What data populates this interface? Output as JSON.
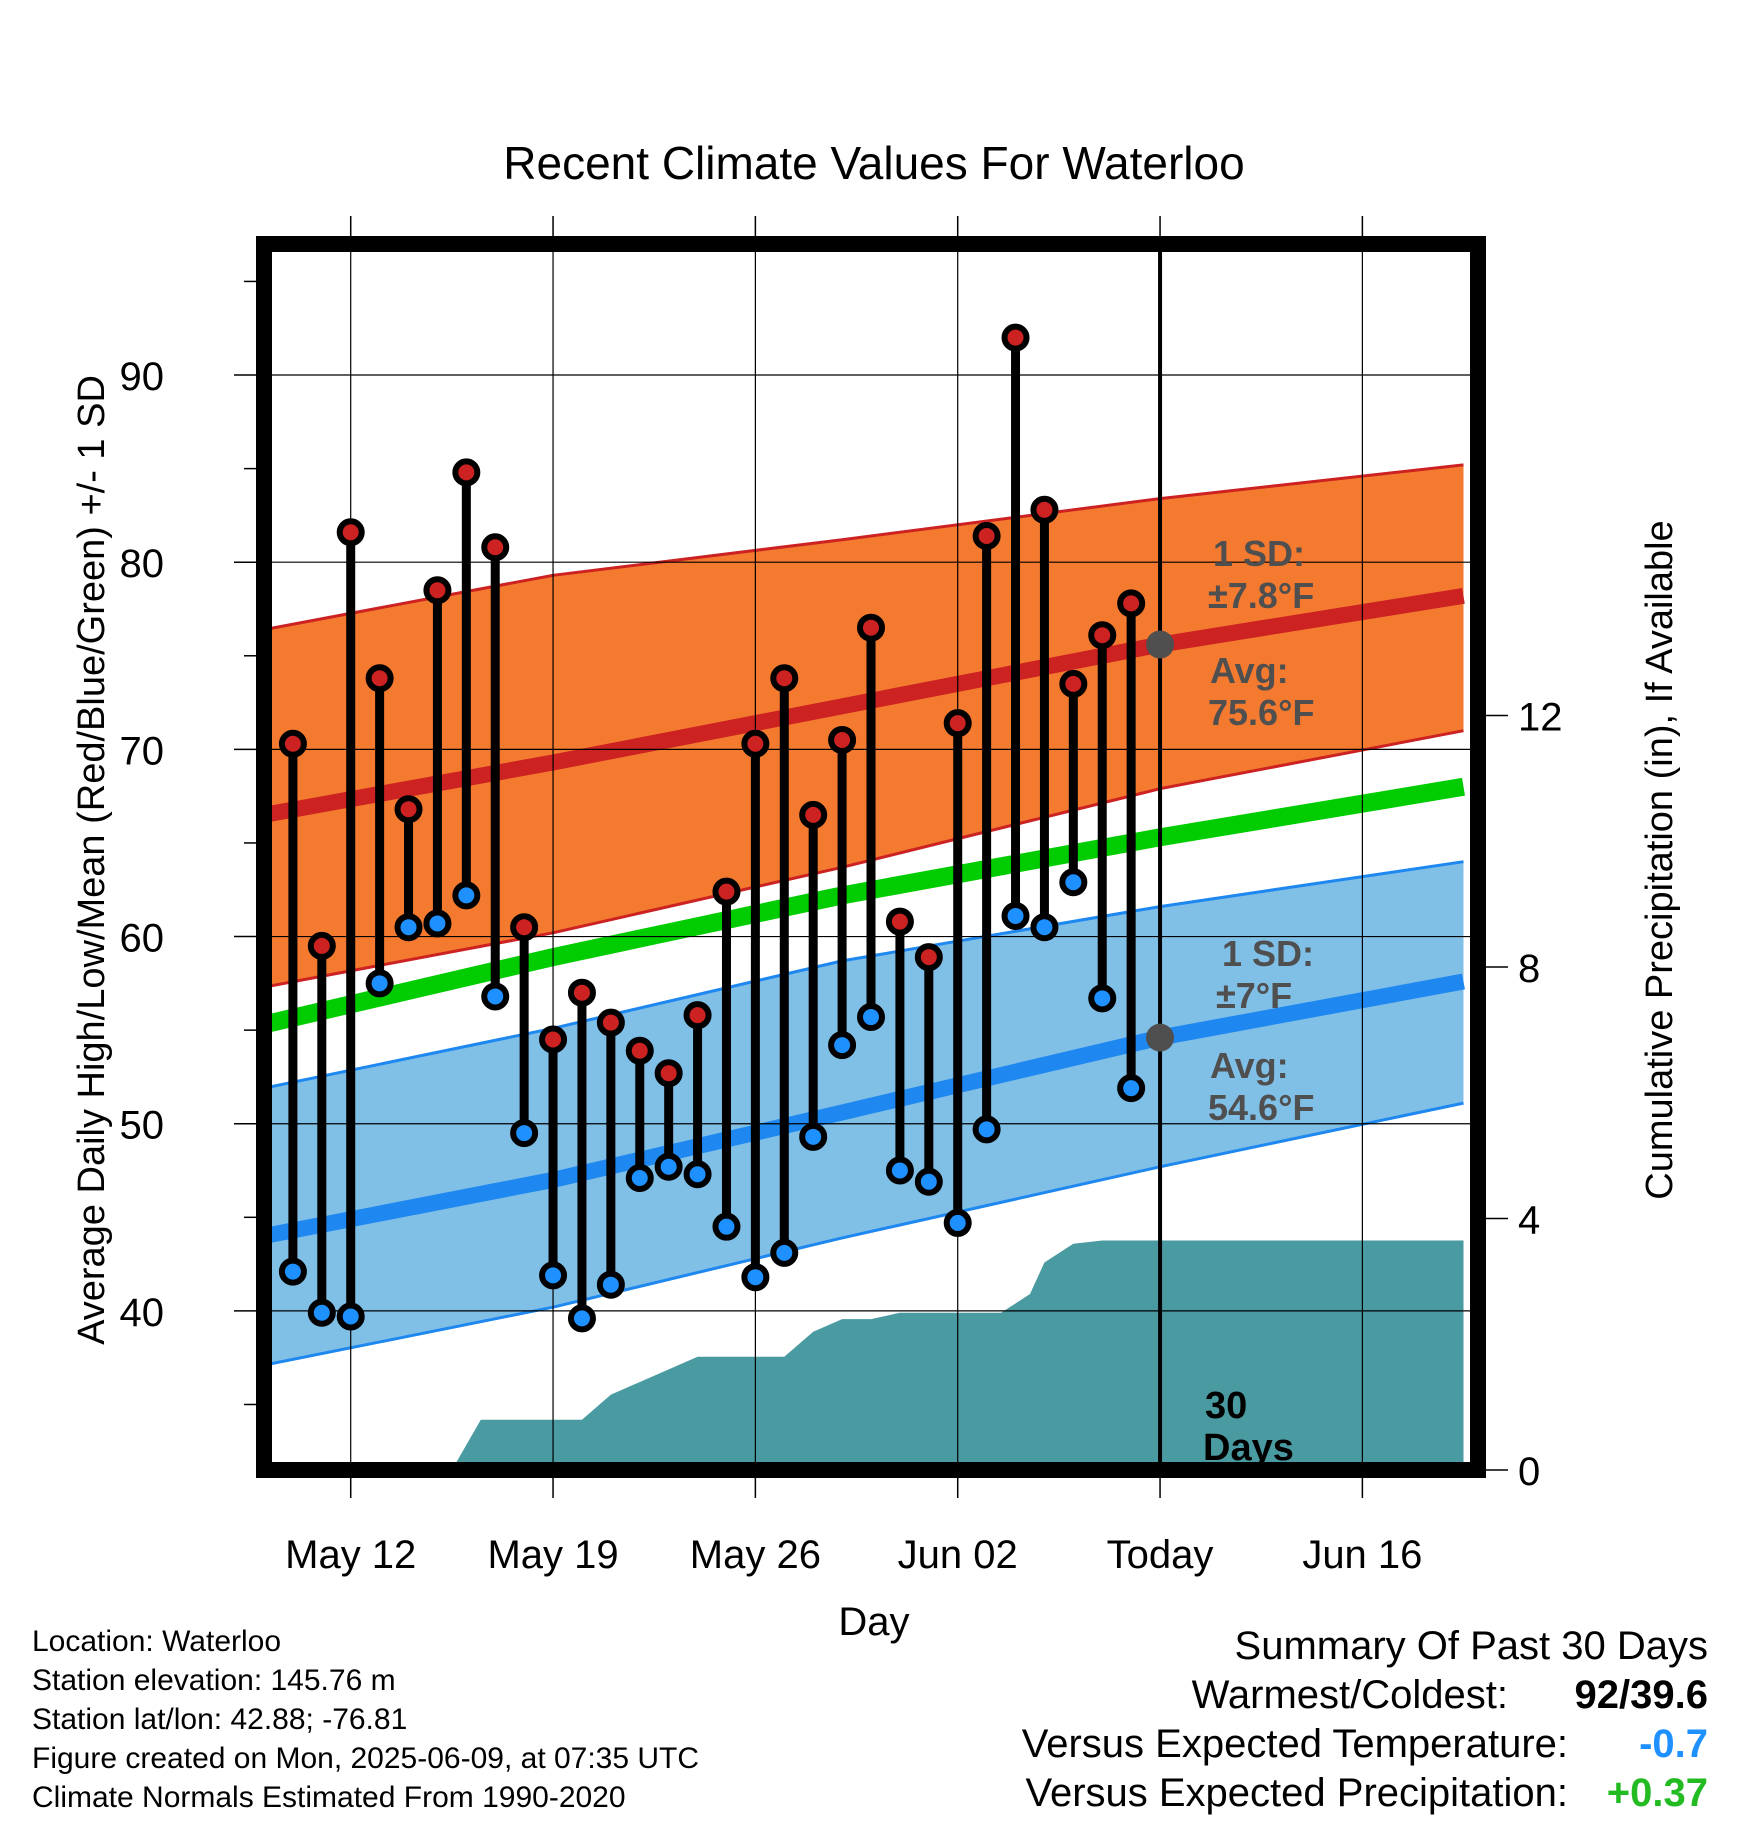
{
  "chart_data": {
    "type": "line",
    "title": "Recent Climate Values For Waterloo",
    "xlabel": "Day",
    "ylabel_left": "Average Daily High/Low/Mean (Red/Blue/Green) +/- 1 SD",
    "ylabel_right": "Cumulative Precipitation (in), If Available",
    "x_day_range": [
      0,
      42
    ],
    "ylim": [
      31.5,
      97
    ],
    "ylim_right": [
      0,
      19.5
    ],
    "yticks": [
      40,
      50,
      60,
      70,
      80,
      90
    ],
    "yticks_right": [
      0,
      4,
      8,
      12
    ],
    "xticks": [
      {
        "day": 3,
        "label": "May 12"
      },
      {
        "day": 10,
        "label": "May 19"
      },
      {
        "day": 17,
        "label": "May 26"
      },
      {
        "day": 24,
        "label": "Jun 02"
      },
      {
        "day": 31,
        "label": "Today"
      },
      {
        "day": 38,
        "label": "Jun 16"
      }
    ],
    "today_day": 31,
    "today_box_label": [
      "30",
      "Days"
    ],
    "normals": {
      "days": [
        0,
        10,
        20,
        31,
        41.5
      ],
      "high_mean": [
        66.5,
        69.3,
        72.3,
        75.6,
        78.2
      ],
      "high_upper": [
        76.4,
        79.3,
        81.2,
        83.4,
        85.2
      ],
      "high_lower": [
        57.3,
        60.2,
        63.7,
        67.9,
        71.0
      ],
      "low_mean": [
        44.0,
        47.0,
        50.6,
        54.6,
        57.6
      ],
      "low_upper": [
        51.9,
        55.1,
        58.7,
        61.6,
        64.0
      ],
      "low_lower": [
        37.1,
        40.2,
        43.9,
        47.7,
        51.1
      ],
      "mean": [
        55.3,
        58.9,
        62.2,
        65.3,
        68.0
      ]
    },
    "high_annotation": {
      "sd_label": "1 SD:",
      "sd_value": "±7.8°F",
      "avg_label": "Avg:",
      "avg_value": "75.6°F"
    },
    "low_annotation": {
      "sd_label": "1 SD:",
      "sd_value": "±7°F",
      "avg_label": "Avg:",
      "avg_value": "54.6°F"
    },
    "daily": [
      {
        "day": 1,
        "high": 70.3,
        "low": 42.1
      },
      {
        "day": 2,
        "high": 59.5,
        "low": 39.9
      },
      {
        "day": 3,
        "high": 81.6,
        "low": 39.7
      },
      {
        "day": 4,
        "high": 73.8,
        "low": 57.5
      },
      {
        "day": 5,
        "high": 66.8,
        "low": 60.5
      },
      {
        "day": 6,
        "high": 78.5,
        "low": 60.7
      },
      {
        "day": 7,
        "high": 84.8,
        "low": 62.2
      },
      {
        "day": 8,
        "high": 80.8,
        "low": 56.8
      },
      {
        "day": 9,
        "high": 60.5,
        "low": 49.5
      },
      {
        "day": 10,
        "high": 54.5,
        "low": 41.9
      },
      {
        "day": 11,
        "high": 57.0,
        "low": 39.6
      },
      {
        "day": 12,
        "high": 55.4,
        "low": 41.4
      },
      {
        "day": 13,
        "high": 53.9,
        "low": 47.1
      },
      {
        "day": 14,
        "high": 52.7,
        "low": 47.7
      },
      {
        "day": 15,
        "high": 55.8,
        "low": 47.3
      },
      {
        "day": 16,
        "high": 62.4,
        "low": 44.5
      },
      {
        "day": 17,
        "high": 70.3,
        "low": 41.8
      },
      {
        "day": 18,
        "high": 73.8,
        "low": 43.1
      },
      {
        "day": 19,
        "high": 66.5,
        "low": 49.3
      },
      {
        "day": 20,
        "high": 70.5,
        "low": 54.2
      },
      {
        "day": 21,
        "high": 76.5,
        "low": 55.7
      },
      {
        "day": 22,
        "high": 60.8,
        "low": 47.5
      },
      {
        "day": 23,
        "high": 58.9,
        "low": 46.9
      },
      {
        "day": 24,
        "high": 71.4,
        "low": 44.7
      },
      {
        "day": 25,
        "high": 81.4,
        "low": 49.7
      },
      {
        "day": 26,
        "high": 92.0,
        "low": 61.1
      },
      {
        "day": 27,
        "high": 82.8,
        "low": 60.5
      },
      {
        "day": 28,
        "high": 73.5,
        "low": 62.9
      },
      {
        "day": 29,
        "high": 76.1,
        "low": 56.7
      },
      {
        "day": 30,
        "high": 77.8,
        "low": 51.9
      }
    ],
    "precip_cumulative": [
      {
        "day": 6.5,
        "value": 0
      },
      {
        "day": 7.5,
        "value": 0.8
      },
      {
        "day": 8,
        "value": 0.8
      },
      {
        "day": 10.5,
        "value": 0.8
      },
      {
        "day": 11,
        "value": 0.8
      },
      {
        "day": 12,
        "value": 1.2
      },
      {
        "day": 14,
        "value": 1.6
      },
      {
        "day": 15,
        "value": 1.8
      },
      {
        "day": 16,
        "value": 1.8
      },
      {
        "day": 18,
        "value": 1.8
      },
      {
        "day": 19,
        "value": 2.2
      },
      {
        "day": 20,
        "value": 2.4
      },
      {
        "day": 21,
        "value": 2.4
      },
      {
        "day": 22,
        "value": 2.5
      },
      {
        "day": 25.5,
        "value": 2.5
      },
      {
        "day": 26.5,
        "value": 2.8
      },
      {
        "day": 27,
        "value": 3.3
      },
      {
        "day": 28,
        "value": 3.6
      },
      {
        "day": 29,
        "value": 3.65
      },
      {
        "day": 41.5,
        "value": 3.65
      }
    ]
  },
  "info": {
    "location": "Location: Waterloo",
    "elevation": "Station elevation: 145.76 m",
    "latlon": "Station lat/lon: 42.88; -76.81",
    "created": "Figure created on Mon, 2025-06-09, at 07:35 UTC",
    "normals": "Climate Normals Estimated From 1990-2020"
  },
  "summary": {
    "heading": "Summary Of Past 30 Days",
    "warm_cold_label": "Warmest/Coldest:",
    "warm_cold_value": "92/39.6",
    "temp_label": "Versus Expected Temperature:",
    "temp_value": "-0.7",
    "temp_color": "#1e90ff",
    "precip_label": "Versus Expected Precipitation:",
    "precip_value": "+0.37",
    "precip_color": "#22bb22"
  },
  "colors": {
    "high_band": "#f47a30",
    "high_line": "#cc2222",
    "low_band": "#80bfe6",
    "low_line": "#1e88f0",
    "mean_line": "#00cc00",
    "precip_fill": "#4a9aa2",
    "high_dot": "#cc2222",
    "low_dot": "#1e90ff",
    "annotation": "#4f4f4f"
  }
}
